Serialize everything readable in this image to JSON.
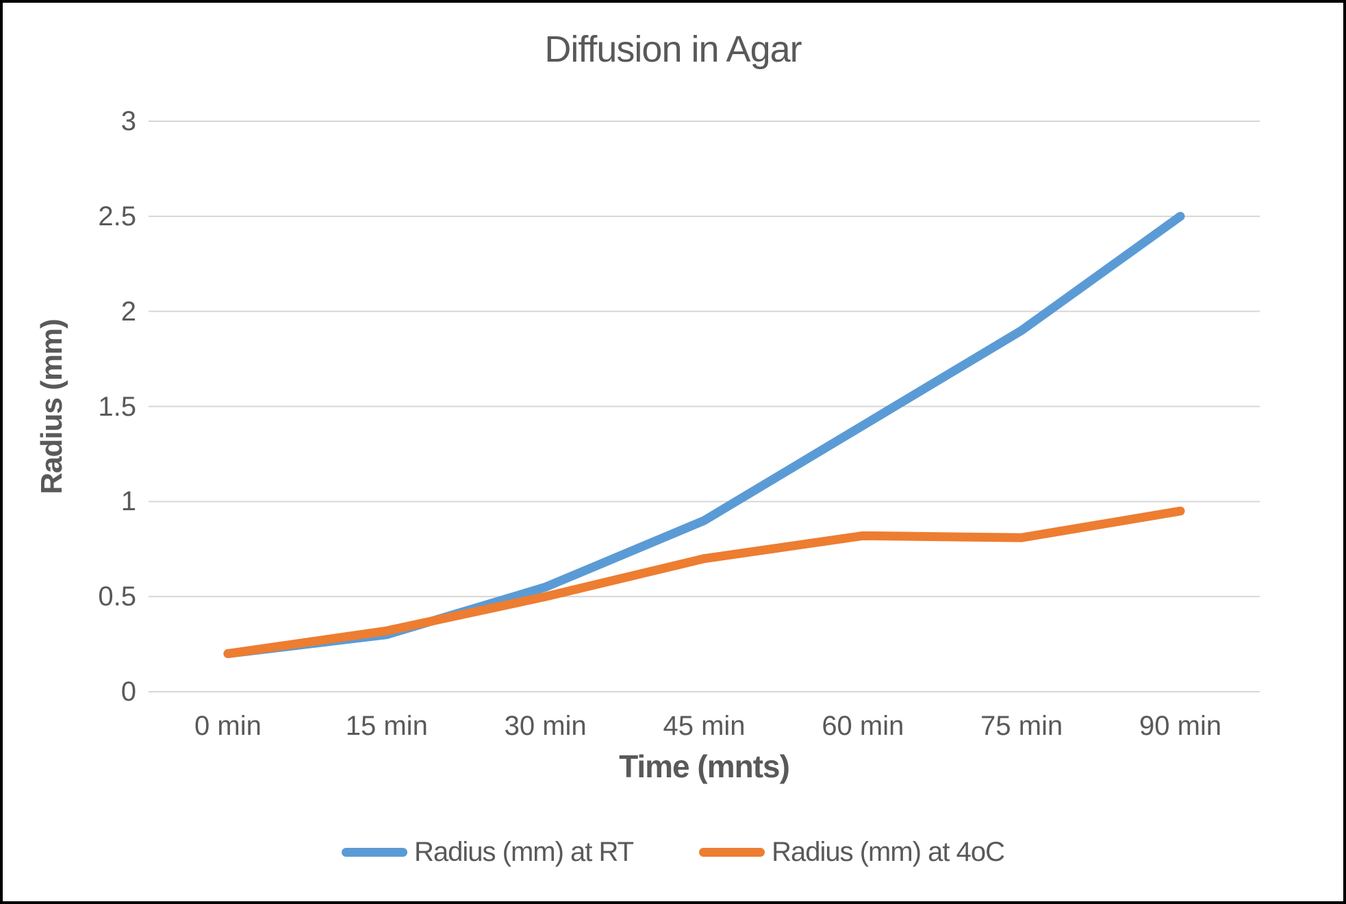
{
  "window": {
    "background_color": "#ffffff",
    "border_color": "#000000"
  },
  "chart_data": {
    "type": "line",
    "title": "Diffusion in Agar",
    "xlabel": "Time (mnts)",
    "ylabel": "Radius (mm)",
    "categories": [
      "0 min",
      "15 min",
      "30 min",
      "45 min",
      "60 min",
      "75 min",
      "90 min"
    ],
    "series": [
      {
        "name": "Radius (mm) at RT",
        "color": "#5B9BD5",
        "values": [
          0.2,
          0.3,
          0.55,
          0.9,
          1.4,
          1.9,
          2.5
        ]
      },
      {
        "name": "Radius (mm) at 4oC",
        "color": "#ED7D31",
        "values": [
          0.2,
          0.32,
          0.5,
          0.7,
          0.82,
          0.81,
          0.95
        ]
      }
    ],
    "ylim": [
      0,
      3
    ],
    "yticks": [
      0,
      0.5,
      1,
      1.5,
      2,
      2.5,
      3
    ],
    "ytick_labels": [
      "0",
      "0.5",
      "1",
      "1.5",
      "2",
      "2.5",
      "3"
    ],
    "grid": true,
    "gridline_color": "#D6D6D6",
    "text_color": "#595959",
    "legend_position": "bottom"
  }
}
